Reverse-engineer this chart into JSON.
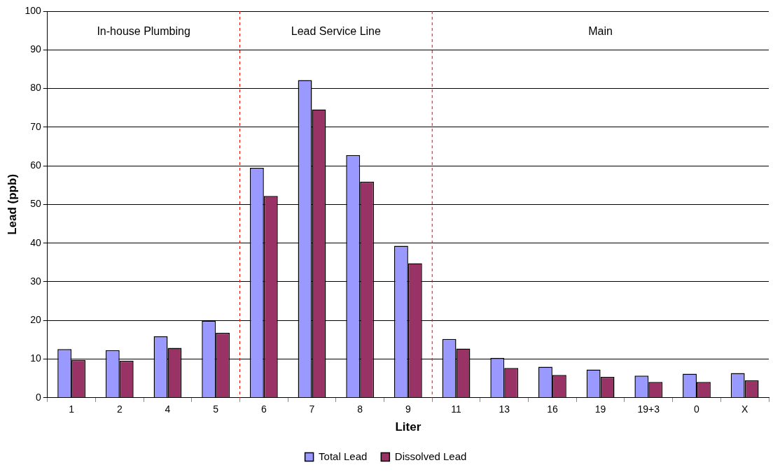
{
  "chart_data": {
    "type": "bar",
    "xlabel": "Liter",
    "ylabel": "Lead (ppb)",
    "categories": [
      "1",
      "2",
      "4",
      "5",
      "6",
      "7",
      "8",
      "9",
      "11",
      "13",
      "16",
      "19",
      "19+3",
      "0",
      "X"
    ],
    "series": [
      {
        "name": "Total Lead",
        "color": "#9999ff",
        "values": [
          12.6,
          12.3,
          15.9,
          19.9,
          59.5,
          82.2,
          62.8,
          39.3,
          15.2,
          10.3,
          8.0,
          7.3,
          5.7,
          6.2,
          6.4
        ]
      },
      {
        "name": "Dissolved Lead",
        "color": "#993366",
        "values": [
          9.8,
          9.6,
          12.9,
          16.8,
          52.2,
          74.6,
          55.9,
          34.8,
          12.7,
          7.7,
          5.9,
          5.4,
          4.1,
          4.1,
          4.5
        ]
      }
    ],
    "ylim": [
      0,
      100
    ],
    "yticks": [
      0,
      10,
      20,
      30,
      40,
      50,
      60,
      70,
      80,
      90,
      100
    ],
    "grid": "y",
    "legend": "bottom",
    "annotations": [
      "In-house Plumbing",
      "Lead Service Line",
      "Main"
    ]
  }
}
